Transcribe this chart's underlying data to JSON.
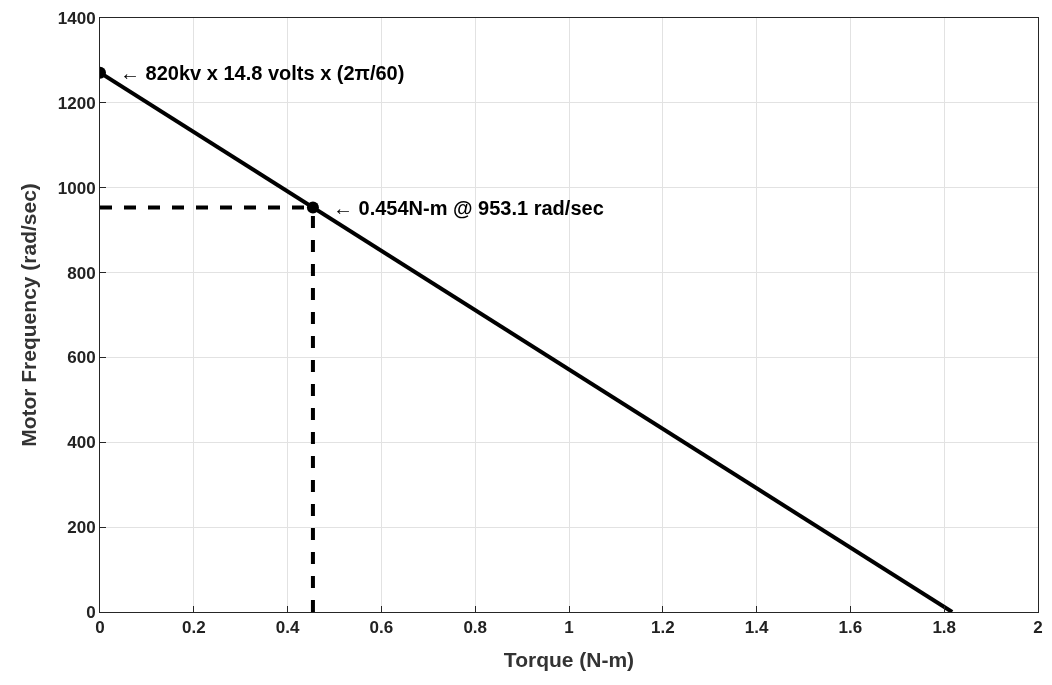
{
  "chart_data": {
    "type": "line",
    "xlabel": "Torque (N-m)",
    "ylabel": "Motor Frequency (rad/sec)",
    "xlim": [
      0,
      2
    ],
    "xticks": [
      0,
      0.2,
      0.4,
      0.6,
      0.8,
      1,
      1.2,
      1.4,
      1.6,
      1.8,
      2
    ],
    "ylim": [
      0,
      1400
    ],
    "yticks": [
      0,
      200,
      400,
      600,
      800,
      1000,
      1200,
      1400
    ],
    "grid": true,
    "series": [
      {
        "x": [
          0,
          1.817
        ],
        "values": [
          1271,
          0
        ],
        "color": "#000000",
        "line_style": "solid",
        "marker": "none"
      },
      {
        "x": [
          0,
          0.454
        ],
        "values": [
          953.1,
          953.1
        ],
        "color": "#000000",
        "line_style": "dashed",
        "marker": "none"
      },
      {
        "x": [
          0.454,
          0.454
        ],
        "values": [
          0,
          953.1
        ],
        "color": "#000000",
        "line_style": "dashed",
        "marker": "none"
      },
      {
        "type": "scatter",
        "x": [
          0,
          0.454
        ],
        "values": [
          1271,
          953.1
        ],
        "color": "#000000",
        "marker": "circle"
      }
    ],
    "annotations": [
      {
        "text": "← 820kv x 14.8 volts x (2π/60)",
        "x": 0,
        "y": 1271
      },
      {
        "text": "← 0.454N-m @ 953.1 rad/sec",
        "x": 0.454,
        "y": 953.1
      }
    ]
  }
}
